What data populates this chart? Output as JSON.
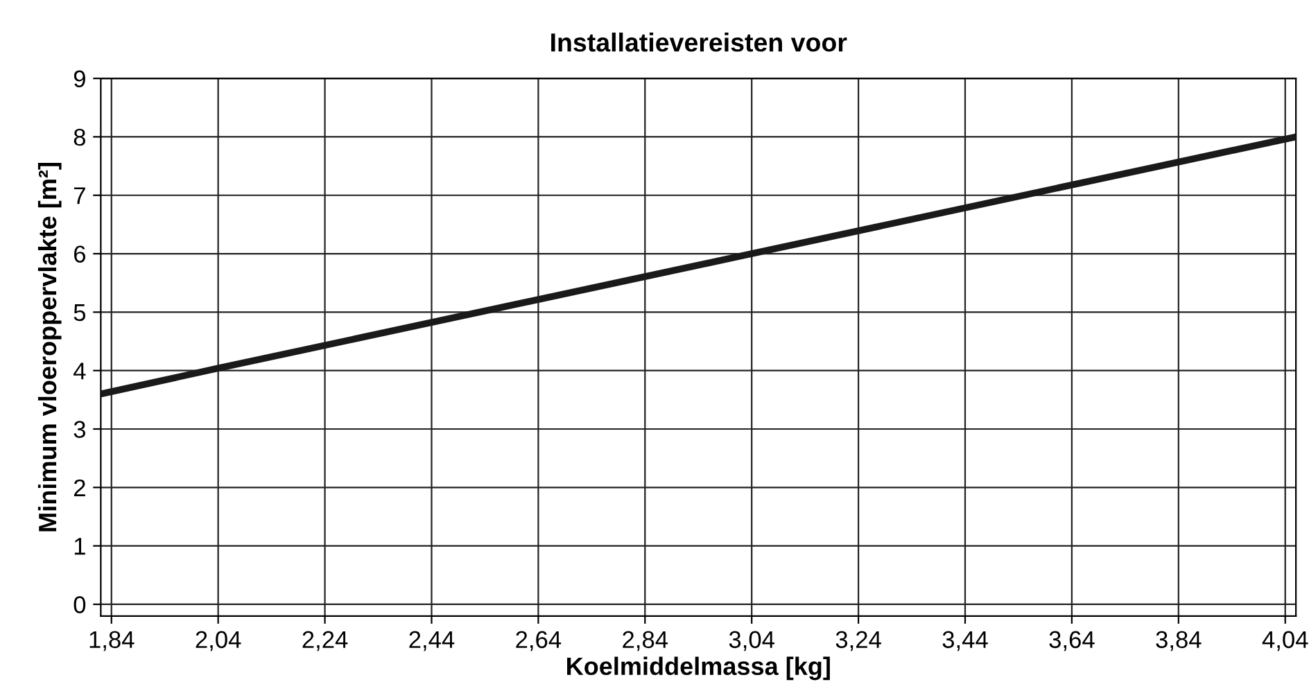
{
  "chart_data": {
    "type": "line",
    "title": "Installatievereisten voor",
    "xlabel": "Koelmiddelmassa [kg]",
    "ylabel": "Minimum vloeroppervlakte [m²]",
    "series": [
      {
        "color": "#1a1a1a",
        "x": [
          1.82,
          2.04,
          3.04,
          4.06
        ],
        "values": [
          3.6,
          4.04,
          6.0,
          8.0
        ]
      }
    ],
    "xlim": [
      1.82,
      4.06
    ],
    "ylim": [
      -0.2,
      9
    ],
    "xticks": [
      {
        "value": 1.84,
        "label": "1,84"
      },
      {
        "value": 2.04,
        "label": "2,04"
      },
      {
        "value": 2.24,
        "label": "2,24"
      },
      {
        "value": 2.44,
        "label": "2,44"
      },
      {
        "value": 2.64,
        "label": "2,64"
      },
      {
        "value": 2.84,
        "label": "2,84"
      },
      {
        "value": 3.04,
        "label": "3,04"
      },
      {
        "value": 3.24,
        "label": "3,24"
      },
      {
        "value": 3.44,
        "label": "3,44"
      },
      {
        "value": 3.64,
        "label": "3,64"
      },
      {
        "value": 3.84,
        "label": "3,84"
      },
      {
        "value": 4.04,
        "label": "4,04"
      }
    ],
    "yticks": [
      0,
      1,
      2,
      3,
      4,
      5,
      6,
      7,
      8,
      9
    ],
    "grid": true,
    "marker": "none",
    "line_style": "solid"
  }
}
